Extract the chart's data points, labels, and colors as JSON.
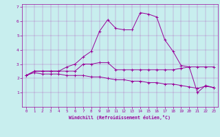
{
  "xlabel": "Windchill (Refroidissement éolien,°C)",
  "bg_color": "#c8eeee",
  "line_color": "#990099",
  "xlim": [
    -0.5,
    23.5
  ],
  "ylim": [
    0,
    7.2
  ],
  "xticks": [
    0,
    1,
    2,
    3,
    4,
    5,
    6,
    7,
    8,
    9,
    10,
    11,
    12,
    13,
    14,
    15,
    16,
    17,
    18,
    19,
    20,
    21,
    22,
    23
  ],
  "yticks": [
    1,
    2,
    3,
    4,
    5,
    6,
    7
  ],
  "line1_y": [
    2.2,
    2.5,
    2.5,
    2.5,
    2.5,
    2.5,
    2.5,
    3.0,
    3.0,
    3.1,
    3.1,
    2.6,
    2.6,
    2.6,
    2.6,
    2.6,
    2.6,
    2.6,
    2.6,
    2.7,
    2.8,
    2.8,
    2.8,
    2.8
  ],
  "line2_y": [
    2.2,
    2.4,
    2.3,
    2.3,
    2.3,
    2.2,
    2.2,
    2.2,
    2.1,
    2.1,
    2.0,
    1.9,
    1.9,
    1.8,
    1.8,
    1.7,
    1.7,
    1.6,
    1.6,
    1.5,
    1.4,
    1.3,
    1.45,
    1.35
  ],
  "line3_y": [
    2.2,
    2.5,
    2.5,
    2.5,
    2.5,
    2.8,
    3.0,
    3.5,
    3.9,
    5.3,
    6.1,
    5.5,
    5.4,
    5.4,
    6.6,
    6.5,
    6.3,
    4.7,
    3.9,
    2.9,
    2.8,
    1.0,
    1.5,
    1.35
  ]
}
